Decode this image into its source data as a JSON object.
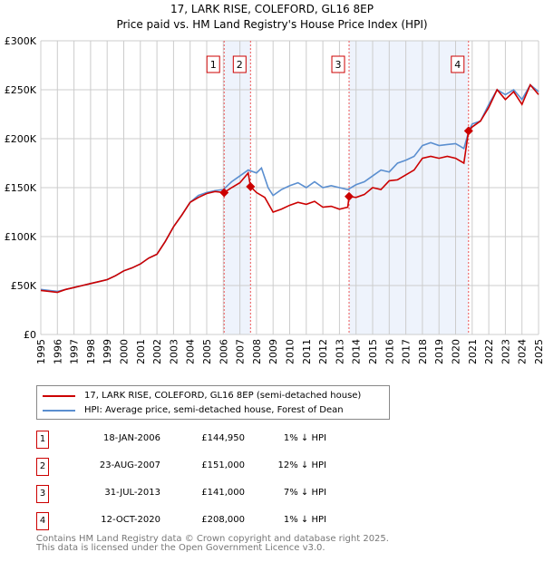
{
  "chart_data": {
    "type": "line",
    "title": "17, LARK RISE, COLEFORD, GL16 8EP",
    "subtitle": "Price paid vs. HM Land Registry's House Price Index (HPI)",
    "xlim": [
      1995,
      2025
    ],
    "ylim": [
      0,
      300000
    ],
    "x_ticks": [
      "1995",
      "1996",
      "1997",
      "1998",
      "1999",
      "2000",
      "2001",
      "2002",
      "2003",
      "2004",
      "2005",
      "2006",
      "2007",
      "2008",
      "2009",
      "2010",
      "2011",
      "2012",
      "2013",
      "2014",
      "2015",
      "2016",
      "2017",
      "2018",
      "2019",
      "2020",
      "2021",
      "2022",
      "2023",
      "2024",
      "2025"
    ],
    "y_ticks": [
      {
        "v": 0,
        "l": "£0"
      },
      {
        "v": 50000,
        "l": "£50K"
      },
      {
        "v": 100000,
        "l": "£100K"
      },
      {
        "v": 150000,
        "l": "£150K"
      },
      {
        "v": 200000,
        "l": "£200K"
      },
      {
        "v": 250000,
        "l": "£250K"
      },
      {
        "v": 300000,
        "l": "£300K"
      }
    ],
    "grid": true,
    "series": [
      {
        "name": "17, LARK RISE, COLEFORD, GL16 8EP (semi-detached house)",
        "color": "#cc0000",
        "x": [
          1995,
          1995.5,
          1996,
          1996.5,
          1997,
          1997.5,
          1998,
          1998.5,
          1999,
          1999.5,
          2000,
          2000.5,
          2001,
          2001.5,
          2002,
          2002.5,
          2003,
          2003.5,
          2004,
          2004.5,
          2005,
          2005.5,
          2006.05,
          2006.5,
          2007,
          2007.5,
          2007.64,
          2008,
          2008.5,
          2009,
          2009.5,
          2010,
          2010.5,
          2011,
          2011.5,
          2012,
          2012.5,
          2013,
          2013.5,
          2013.58,
          2014,
          2014.5,
          2015,
          2015.5,
          2016,
          2016.5,
          2017,
          2017.5,
          2018,
          2018.5,
          2019,
          2019.5,
          2020,
          2020.5,
          2020.78,
          2021,
          2021.5,
          2022,
          2022.5,
          2023,
          2023.5,
          2024,
          2024.5,
          2025
        ],
        "y": [
          45000,
          44000,
          43000,
          46000,
          48000,
          50000,
          52000,
          54000,
          56000,
          60000,
          65000,
          68000,
          72000,
          78000,
          82000,
          95000,
          110000,
          122000,
          135000,
          140000,
          144000,
          146000,
          144950,
          150000,
          155000,
          165000,
          151000,
          145000,
          140000,
          125000,
          128000,
          132000,
          135000,
          133000,
          136000,
          130000,
          131000,
          128000,
          130000,
          141000,
          140000,
          143000,
          150000,
          148000,
          157000,
          158000,
          163000,
          168000,
          180000,
          182000,
          180000,
          182000,
          180000,
          175000,
          208000,
          212000,
          218000,
          232000,
          250000,
          240000,
          248000,
          235000,
          255000,
          245000
        ]
      },
      {
        "name": "HPI: Average price, semi-detached house, Forest of Dean",
        "color": "#5b8fd0",
        "x": [
          1995,
          1995.5,
          1996,
          1996.5,
          1997,
          1997.5,
          1998,
          1998.5,
          1999,
          1999.5,
          2000,
          2000.5,
          2001,
          2001.5,
          2002,
          2002.5,
          2003,
          2003.5,
          2004,
          2004.5,
          2005,
          2005.5,
          2006,
          2006.5,
          2007,
          2007.5,
          2008,
          2008.3,
          2008.7,
          2009,
          2009.5,
          2010,
          2010.5,
          2011,
          2011.5,
          2012,
          2012.5,
          2013,
          2013.5,
          2014,
          2014.5,
          2015,
          2015.5,
          2016,
          2016.5,
          2017,
          2017.5,
          2018,
          2018.5,
          2019,
          2019.5,
          2020,
          2020.5,
          2020.8,
          2021,
          2021.5,
          2022,
          2022.5,
          2023,
          2023.5,
          2024,
          2024.5,
          2025
        ],
        "y": [
          46000,
          45000,
          44000,
          46000,
          48000,
          50000,
          52000,
          54000,
          56000,
          60000,
          65000,
          68000,
          72000,
          78000,
          82000,
          95000,
          110000,
          122000,
          135000,
          142000,
          145000,
          147000,
          148000,
          156000,
          162000,
          168000,
          165000,
          170000,
          150000,
          142000,
          148000,
          152000,
          155000,
          150000,
          156000,
          150000,
          152000,
          150000,
          148000,
          153000,
          156000,
          162000,
          168000,
          166000,
          175000,
          178000,
          182000,
          193000,
          196000,
          193000,
          194000,
          195000,
          190000,
          208000,
          215000,
          218000,
          235000,
          250000,
          245000,
          250000,
          240000,
          255000,
          248000
        ]
      }
    ],
    "sales": [
      {
        "n": "1",
        "x": 2006.05,
        "price": 144950,
        "date": "18-JAN-2006",
        "price_label": "£144,950",
        "hpi": "1% ↓ HPI"
      },
      {
        "n": "2",
        "x": 2007.64,
        "price": 151000,
        "date": "23-AUG-2007",
        "price_label": "£151,000",
        "hpi": "12% ↓ HPI"
      },
      {
        "n": "3",
        "x": 2013.58,
        "price": 141000,
        "date": "31-JUL-2013",
        "price_label": "£141,000",
        "hpi": "7% ↓ HPI"
      },
      {
        "n": "4",
        "x": 2020.78,
        "price": 208000,
        "date": "12-OCT-2020",
        "price_label": "£208,000",
        "hpi": "1% ↓ HPI"
      }
    ],
    "shaded_ranges": [
      [
        2006.05,
        2007.64
      ],
      [
        2013.58,
        2020.78
      ]
    ],
    "footer": [
      "Contains HM Land Registry data © Crown copyright and database right 2025.",
      "This data is licensed under the Open Government Licence v3.0."
    ]
  }
}
